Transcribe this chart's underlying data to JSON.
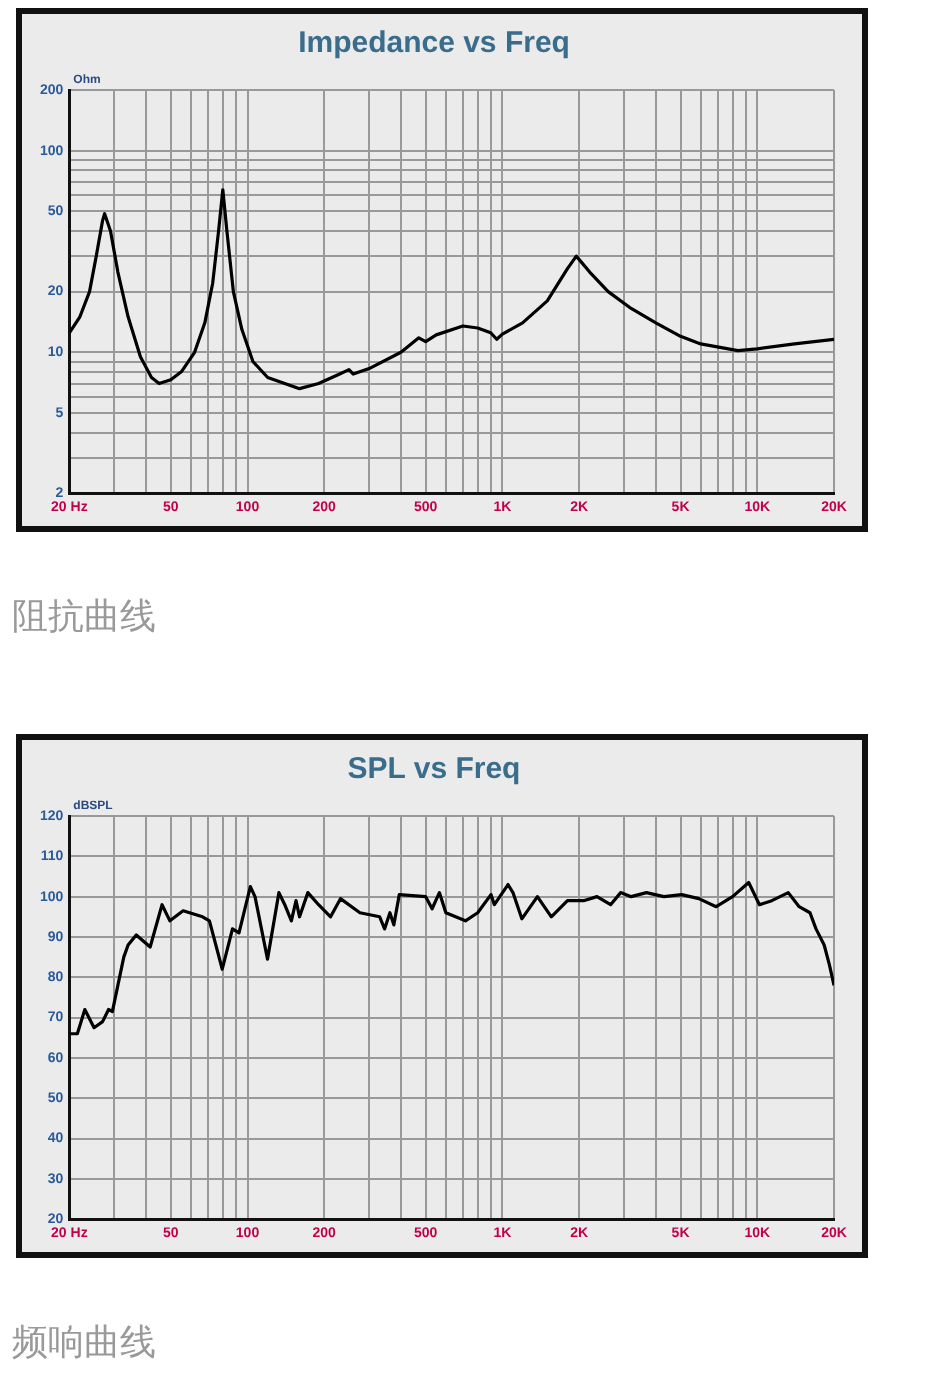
{
  "chart_data": [
    {
      "type": "line",
      "title": "Impedance vs Freq",
      "ylabel": "Ohm",
      "annotations": [
        "阻抗曲线"
      ],
      "log": "xy",
      "grid": true,
      "legend": false,
      "marker": "none",
      "line_style": "solid",
      "xlim": [
        20,
        20000
      ],
      "xticks": [
        {
          "value": 20,
          "label": "20 Hz"
        },
        {
          "value": 30,
          "label": null
        },
        {
          "value": 40,
          "label": null
        },
        50,
        {
          "value": 60,
          "label": null
        },
        {
          "value": 70,
          "label": null
        },
        {
          "value": 80,
          "label": null
        },
        {
          "value": 90,
          "label": null
        },
        100,
        200,
        {
          "value": 300,
          "label": null
        },
        {
          "value": 400,
          "label": null
        },
        500,
        {
          "value": 600,
          "label": null
        },
        {
          "value": 700,
          "label": null
        },
        {
          "value": 800,
          "label": null
        },
        {
          "value": 900,
          "label": null
        },
        {
          "value": 1000,
          "label": "1K"
        },
        {
          "value": 2000,
          "label": "2K"
        },
        {
          "value": 3000,
          "label": null
        },
        {
          "value": 4000,
          "label": null
        },
        {
          "value": 5000,
          "label": "5K"
        },
        {
          "value": 6000,
          "label": null
        },
        {
          "value": 7000,
          "label": null
        },
        {
          "value": 8000,
          "label": null
        },
        {
          "value": 9000,
          "label": null
        },
        {
          "value": 10000,
          "label": "10K"
        },
        {
          "value": 20000,
          "label": "20K"
        }
      ],
      "ylim": [
        2,
        200
      ],
      "yticks": [
        2,
        {
          "value": 3,
          "label": null
        },
        {
          "value": 4,
          "label": null
        },
        5,
        {
          "value": 6,
          "label": null
        },
        {
          "value": 7,
          "label": null
        },
        {
          "value": 8,
          "label": null
        },
        {
          "value": 9,
          "label": null
        },
        10,
        20,
        {
          "value": 30,
          "label": null
        },
        {
          "value": 40,
          "label": null
        },
        50,
        {
          "value": 60,
          "label": null
        },
        {
          "value": 70,
          "label": null
        },
        {
          "value": 80,
          "label": null
        },
        {
          "value": 90,
          "label": null
        },
        100,
        200
      ],
      "series": [
        {
          "color": "#000000",
          "x": [
            20,
            22,
            24,
            25.5,
            27,
            27.5,
            29,
            31,
            34,
            38,
            42,
            45,
            50,
            55,
            62,
            68,
            73,
            77,
            80,
            83,
            88,
            95,
            105,
            120,
            140,
            160,
            190,
            230,
            250,
            260,
            300,
            400,
            470,
            500,
            550,
            700,
            800,
            900,
            950,
            1000,
            1200,
            1500,
            1800,
            1950,
            2200,
            2600,
            3200,
            4000,
            5000,
            6000,
            8400,
            10000,
            14000,
            20000
          ],
          "values": [
            12.5,
            15,
            20,
            30,
            45,
            48.7,
            40,
            25,
            15,
            9.5,
            7.5,
            7,
            7.3,
            8,
            10,
            14,
            22,
            40,
            64,
            40,
            20,
            13,
            9,
            7.5,
            7,
            6.6,
            7,
            7.8,
            8.2,
            7.8,
            8.3,
            10,
            11.8,
            11.3,
            12.2,
            13.5,
            13.2,
            12.5,
            11.6,
            12.3,
            14,
            18,
            26,
            30,
            25,
            20,
            16.5,
            14,
            12,
            11,
            10.2,
            10.4,
            11,
            11.6
          ]
        }
      ]
    },
    {
      "type": "line",
      "title": "SPL vs Freq",
      "ylabel": "dBSPL",
      "annotations": [
        "频响曲线"
      ],
      "log": "x",
      "grid": true,
      "legend": false,
      "marker": "none",
      "line_style": "solid",
      "xlim": [
        20,
        20000
      ],
      "xticks": [
        {
          "value": 20,
          "label": "20 Hz"
        },
        {
          "value": 30,
          "label": null
        },
        {
          "value": 40,
          "label": null
        },
        50,
        {
          "value": 60,
          "label": null
        },
        {
          "value": 70,
          "label": null
        },
        {
          "value": 80,
          "label": null
        },
        {
          "value": 90,
          "label": null
        },
        100,
        200,
        {
          "value": 300,
          "label": null
        },
        {
          "value": 400,
          "label": null
        },
        500,
        {
          "value": 600,
          "label": null
        },
        {
          "value": 700,
          "label": null
        },
        {
          "value": 800,
          "label": null
        },
        {
          "value": 900,
          "label": null
        },
        {
          "value": 1000,
          "label": "1K"
        },
        {
          "value": 2000,
          "label": "2K"
        },
        {
          "value": 3000,
          "label": null
        },
        {
          "value": 4000,
          "label": null
        },
        {
          "value": 5000,
          "label": "5K"
        },
        {
          "value": 6000,
          "label": null
        },
        {
          "value": 7000,
          "label": null
        },
        {
          "value": 8000,
          "label": null
        },
        {
          "value": 9000,
          "label": null
        },
        {
          "value": 10000,
          "label": "10K"
        },
        {
          "value": 20000,
          "label": "20K"
        }
      ],
      "ylim": [
        20,
        120
      ],
      "yticks": [
        20,
        30,
        40,
        50,
        60,
        70,
        80,
        90,
        100,
        110,
        120
      ],
      "series": [
        {
          "color": "#000000",
          "x": [
            20,
            21.5,
            23,
            25,
            27,
            28.5,
            29.5,
            31,
            32.7,
            34,
            36.6,
            41.5,
            46.2,
            49.6,
            55.9,
            66.6,
            70.9,
            79.6,
            87.3,
            92.6,
            102.6,
            107,
            119.8,
            132.8,
            140,
            148.6,
            155,
            160,
            172.5,
            190,
            211.8,
            231.6,
            276,
            330,
            345,
            362,
            375,
            394,
            500,
            530,
            566,
            600,
            716,
            800,
            902,
            930,
            1052,
            1100,
            1192,
            1372,
            1556,
            1800,
            2083,
            2350,
            2658,
            2911,
            3200,
            3674,
            4300,
            5052,
            5900,
            6898,
            8000,
            9255,
            10200,
            11400,
            13228,
            14600,
            16100,
            17000,
            18300,
            19200,
            20000
          ],
          "values": [
            66,
            66,
            72,
            67.5,
            69,
            72,
            71.5,
            78,
            85,
            88,
            90.5,
            87.5,
            98,
            94,
            96.5,
            95,
            94,
            82,
            92,
            91,
            102.5,
            100,
            84.5,
            101,
            98,
            94,
            99,
            95,
            101,
            98,
            95,
            99.5,
            96,
            95,
            92,
            96,
            93,
            100.5,
            100,
            97,
            101,
            96,
            94,
            96,
            100.5,
            98,
            103,
            101,
            94.5,
            100,
            95,
            99,
            99,
            100,
            98,
            101,
            100,
            101,
            100,
            100.5,
            99.5,
            97.5,
            100,
            103.5,
            98,
            99,
            101,
            97.5,
            96,
            92,
            88,
            83,
            78
          ]
        }
      ]
    }
  ]
}
